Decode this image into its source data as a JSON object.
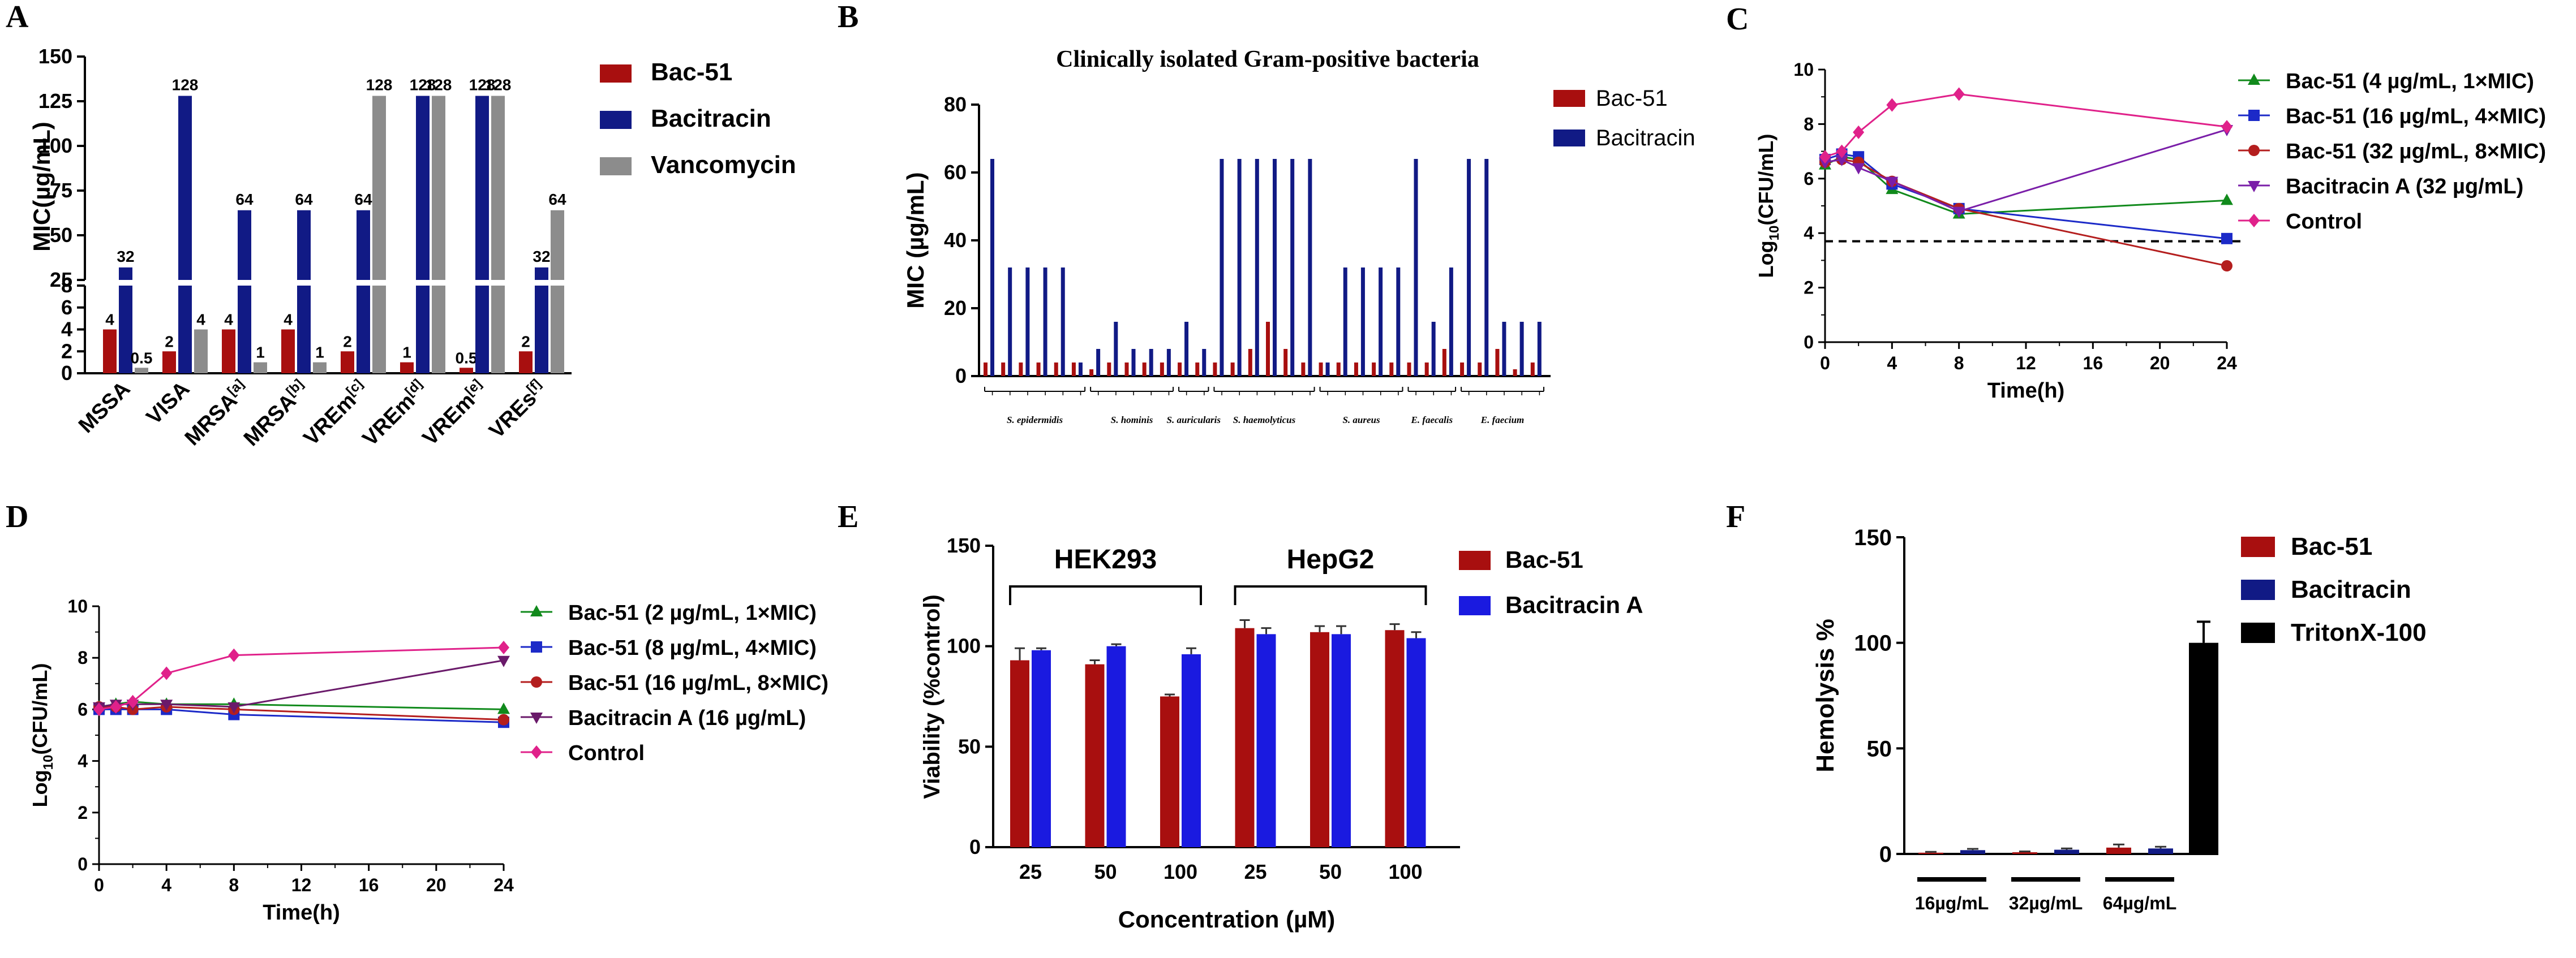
{
  "chart_data": [
    {
      "panel": "A",
      "type": "bar",
      "ylabel": "MIC(µg/mL)",
      "categories": [
        "MSSA",
        "VISA",
        "MRSA",
        "MRSA",
        "VREm",
        "VREm",
        "VREm",
        "VREs"
      ],
      "category_sups": [
        "",
        "",
        "[a]",
        "[b]",
        "[c]",
        "[d]",
        "[e]",
        "[f]"
      ],
      "series": [
        {
          "name": "Bac-51",
          "color": "#a80f0f",
          "values": [
            4,
            2,
            4,
            4,
            2,
            1,
            0.5,
            2
          ],
          "labels": [
            "4",
            "2",
            "4",
            "4",
            "2",
            "1",
            "0.5",
            "2"
          ]
        },
        {
          "name": "Bacitracin",
          "color": "#111a85",
          "values": [
            32,
            128,
            64,
            64,
            64,
            128,
            128,
            32
          ],
          "labels": [
            "32",
            "128",
            "64",
            "64",
            "64",
            "128",
            "128",
            "32"
          ]
        },
        {
          "name": "Vancomycin",
          "color": "#8c8c8c",
          "values": [
            0.5,
            4,
            1,
            1,
            128,
            128,
            128,
            64
          ],
          "labels": [
            "0.5",
            "4",
            "1",
            "1",
            "128",
            "128",
            "128",
            "64"
          ]
        }
      ],
      "yticks_low": [
        "0",
        "2",
        "4",
        "6",
        "8"
      ],
      "yticks_high": [
        "25",
        "50",
        "75",
        "100",
        "125",
        "150"
      ]
    },
    {
      "panel": "B",
      "type": "bar",
      "title": "Clinically isolated Gram-positive bacteria",
      "ylabel": "MIC (µg/mL)",
      "ylim": [
        0,
        80
      ],
      "yticks": [
        "0",
        "20",
        "40",
        "60",
        "80"
      ],
      "series": [
        {
          "name": "Bac-51",
          "color": "#a80f0f",
          "values": [
            4,
            4,
            4,
            4,
            4,
            4,
            2,
            4,
            4,
            4,
            4,
            4,
            4,
            4,
            4,
            8,
            16,
            8,
            4,
            4,
            4,
            4,
            4,
            4,
            4,
            4,
            8,
            4,
            4,
            8,
            2,
            4
          ]
        },
        {
          "name": "Bacitracin",
          "color": "#111a85",
          "values": [
            64,
            32,
            32,
            32,
            32,
            4,
            8,
            16,
            8,
            8,
            8,
            16,
            8,
            64,
            64,
            64,
            64,
            64,
            64,
            4,
            32,
            32,
            32,
            32,
            64,
            16,
            32,
            64,
            64,
            16,
            16,
            16
          ]
        }
      ],
      "groups": [
        {
          "name": "S. epidermidis",
          "start": 0,
          "count": 6
        },
        {
          "name": "S. hominis",
          "start": 6,
          "count": 5
        },
        {
          "name": "S. auricularis",
          "start": 11,
          "count": 2
        },
        {
          "name": "S. haemolyticus",
          "start": 13,
          "count": 6
        },
        {
          "name": "S. aureus",
          "start": 19,
          "count": 5
        },
        {
          "name": "E. faecalis",
          "start": 24,
          "count": 3
        },
        {
          "name": "E. faecium",
          "start": 27,
          "count": 5
        }
      ]
    },
    {
      "panel": "C",
      "type": "line",
      "xlabel": "Time(h)",
      "ylabel": "Log10(CFU/mL)",
      "ylabel_base": "Log",
      "ylabel_sub": "10",
      "ylabel_rest": "(CFU/mL)",
      "xlim": [
        0,
        24
      ],
      "ylim": [
        0,
        10
      ],
      "xticks": [
        "0",
        "4",
        "8",
        "12",
        "16",
        "20",
        "24"
      ],
      "yticks": [
        "0",
        "2",
        "4",
        "6",
        "8",
        "10"
      ],
      "threshold": 3.7,
      "series": [
        {
          "name": "Bac-51 (4 µg/mL, 1×MIC)",
          "color": "#118a1c",
          "marker": "tri-up",
          "x": [
            0,
            1,
            2,
            4,
            8,
            24
          ],
          "y": [
            6.5,
            6.8,
            6.7,
            5.6,
            4.7,
            5.2
          ]
        },
        {
          "name": "Bac-51 (16 µg/mL, 4×MIC)",
          "color": "#1c2ac8",
          "marker": "square",
          "x": [
            0,
            1,
            2,
            4,
            8,
            24
          ],
          "y": [
            6.7,
            6.9,
            6.8,
            5.8,
            4.9,
            3.8
          ]
        },
        {
          "name": "Bac-51 (32 µg/mL, 8×MIC)",
          "color": "#b41e1e",
          "marker": "circle",
          "x": [
            0,
            1,
            2,
            4,
            8,
            24
          ],
          "y": [
            6.6,
            6.7,
            6.6,
            5.9,
            4.9,
            2.8
          ]
        },
        {
          "name": "Bacitracin A (32 µg/mL)",
          "color": "#7a1ea8",
          "marker": "tri-down",
          "x": [
            0,
            1,
            2,
            4,
            8,
            24
          ],
          "y": [
            6.6,
            6.7,
            6.4,
            5.9,
            4.8,
            7.8
          ]
        },
        {
          "name": "Control",
          "color": "#e0218a",
          "marker": "diamond",
          "x": [
            0,
            1,
            2,
            4,
            8,
            24
          ],
          "y": [
            6.8,
            7.0,
            7.7,
            8.7,
            9.1,
            7.9
          ]
        }
      ]
    },
    {
      "panel": "D",
      "type": "line",
      "xlabel": "Time(h)",
      "ylabel": "Log10(CFU/mL)",
      "ylabel_base": "Log",
      "ylabel_sub": "10",
      "ylabel_rest": "(CFU/mL)",
      "xlim": [
        0,
        24
      ],
      "ylim": [
        0,
        10
      ],
      "xticks": [
        "0",
        "4",
        "8",
        "12",
        "16",
        "20",
        "24"
      ],
      "yticks": [
        "0",
        "2",
        "4",
        "6",
        "8",
        "10"
      ],
      "series": [
        {
          "name": "Bac-51 (2 µg/mL, 1×MIC)",
          "color": "#118a1c",
          "marker": "tri-up",
          "x": [
            0,
            1,
            2,
            4,
            8,
            24
          ],
          "y": [
            6.1,
            6.2,
            6.3,
            6.2,
            6.2,
            6.0
          ]
        },
        {
          "name": "Bac-51 (8 µg/mL, 4×MIC)",
          "color": "#1c2ac8",
          "marker": "square",
          "x": [
            0,
            1,
            2,
            4,
            8,
            24
          ],
          "y": [
            6.0,
            6.0,
            6.0,
            6.0,
            5.8,
            5.5
          ]
        },
        {
          "name": "Bac-51 (16 µg/mL, 8×MIC)",
          "color": "#b41e1e",
          "marker": "circle",
          "x": [
            0,
            1,
            2,
            4,
            8,
            24
          ],
          "y": [
            6.1,
            6.1,
            6.0,
            6.1,
            6.0,
            5.6
          ]
        },
        {
          "name": "Bacitracin A (16 µg/mL)",
          "color": "#6a1a6a",
          "marker": "tri-down",
          "x": [
            0,
            1,
            2,
            4,
            8,
            24
          ],
          "y": [
            6.1,
            6.2,
            6.2,
            6.2,
            6.1,
            7.9
          ]
        },
        {
          "name": "Control",
          "color": "#e0218a",
          "marker": "diamond",
          "x": [
            0,
            1,
            2,
            4,
            8,
            24
          ],
          "y": [
            6.0,
            6.1,
            6.3,
            7.4,
            8.1,
            8.4
          ]
        }
      ]
    },
    {
      "panel": "E",
      "type": "bar",
      "xlabel": "Concentration (µM)",
      "ylabel": "Viability (%control)",
      "ylim": [
        0,
        150
      ],
      "yticks": [
        "0",
        "50",
        "100",
        "150"
      ],
      "categories": [
        "25",
        "50",
        "100",
        "25",
        "50",
        "100"
      ],
      "cell_lines": [
        "HEK293",
        "HepG2"
      ],
      "series": [
        {
          "name": "Bac-51",
          "color": "#a80f0f",
          "values": [
            93,
            91,
            75,
            109,
            107,
            108
          ],
          "errors": [
            6,
            2,
            1,
            4,
            3,
            3
          ]
        },
        {
          "name": "Bacitracin A",
          "color": "#1a1ae0",
          "values": [
            98,
            100,
            96,
            106,
            106,
            104
          ],
          "errors": [
            1,
            1,
            3,
            3,
            4,
            3
          ]
        }
      ]
    },
    {
      "panel": "F",
      "type": "bar",
      "ylabel": "Hemolysis %",
      "ylim": [
        0,
        150
      ],
      "yticks": [
        "0",
        "50",
        "100",
        "150"
      ],
      "concentrations": [
        "16µg/mL",
        "32µg/mL",
        "64µg/mL"
      ],
      "series": [
        {
          "name": "Bac-51",
          "color": "#a80f0f",
          "values": [
            0.6,
            0.8,
            3.0
          ],
          "errors": [
            0.4,
            0.4,
            1.5
          ]
        },
        {
          "name": "Bacitracin",
          "color": "#111a85",
          "values": [
            1.8,
            2.0,
            2.6
          ],
          "errors": [
            0.6,
            0.6,
            0.8
          ]
        },
        {
          "name": "TritonX-100",
          "color": "#000000",
          "values": [
            100
          ],
          "errors": [
            10
          ]
        }
      ]
    }
  ]
}
